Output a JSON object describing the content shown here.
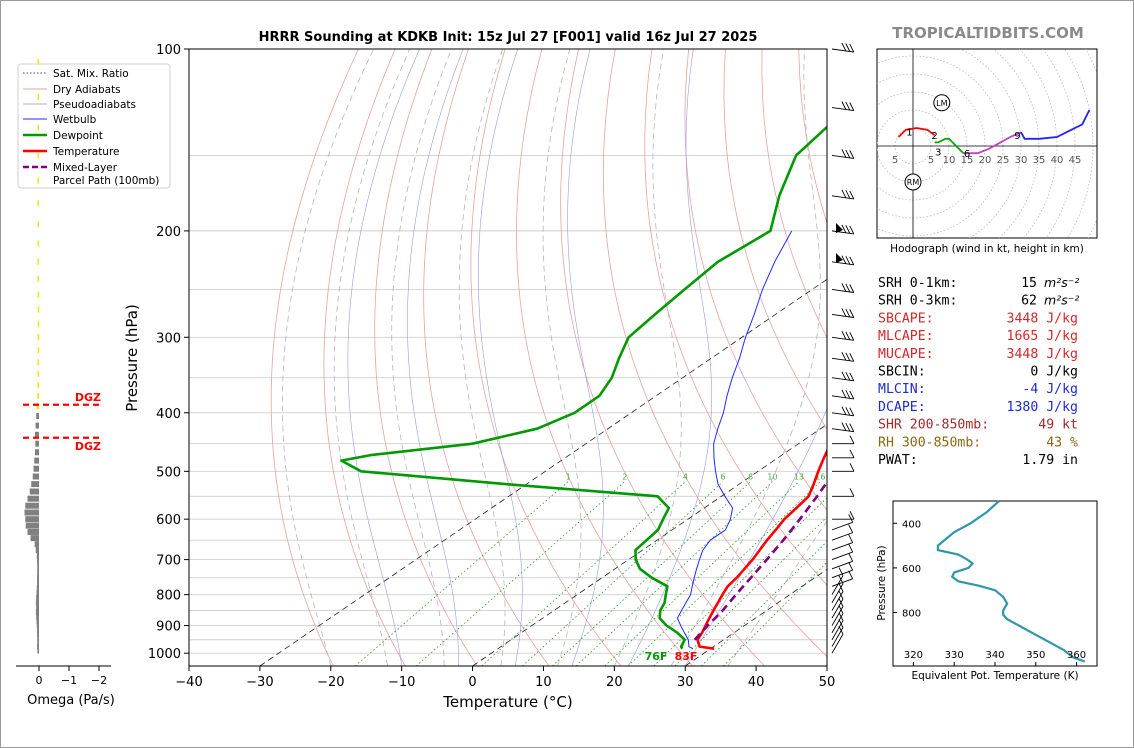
{
  "site": "TROPICALTIDBITS.COM",
  "chart_data": [
    {
      "type": "skew-t",
      "title": "HRRR Sounding at KDKB Init: 15z Jul 27 [F001] valid 16z Jul 27 2025",
      "xlabel": "Temperature (°C)",
      "ylabel": "Pressure (hPa)",
      "xlim": [
        -40,
        50
      ],
      "ylim": [
        1050,
        100
      ],
      "y_scale": "log",
      "skew_per_decade_C": 125,
      "xticks": [
        -40,
        -30,
        -20,
        -10,
        0,
        10,
        20,
        30,
        40,
        50
      ],
      "xtick_labels": [
        "−40",
        "−30",
        "−20",
        "−10",
        "0",
        "10",
        "20",
        "30",
        "40",
        "50"
      ],
      "yticks": [
        100,
        200,
        300,
        400,
        500,
        600,
        700,
        800,
        900,
        1000
      ],
      "mixing_ratio_labels": [
        "1",
        "2",
        "4",
        "6",
        "8",
        "10",
        "13",
        "16",
        "20",
        "24",
        "30",
        "36"
      ],
      "mixing_ratio_values": [
        1,
        2,
        4,
        6,
        8,
        10,
        13,
        16,
        20,
        24,
        30,
        36
      ],
      "surface_temp_label": "83F",
      "surface_dewpoint_label": "76F",
      "legend": {
        "placement": "top-left",
        "entries": [
          {
            "label": "Sat. Mix. Ratio",
            "color": "#4a4a4a",
            "style": "dotted"
          },
          {
            "label": "Dry Adiabats",
            "color": "#e8a0a0",
            "style": "solid"
          },
          {
            "label": "Pseudoadiabats",
            "color": "#b0b0b0",
            "style": "solid"
          },
          {
            "label": "Wetbulb",
            "color": "#1f2bff",
            "style": "solid"
          },
          {
            "label": "Dewpoint",
            "color": "#009900",
            "style": "solid"
          },
          {
            "label": "Temperature",
            "color": "#ff0000",
            "style": "solid"
          },
          {
            "label": "Mixed-Layer\nParcel Path (100mb)",
            "color": "#800080",
            "style": "dashed"
          }
        ]
      },
      "series": [
        {
          "name": "Temperature",
          "color": "#ff0000",
          "points": [
            [
              983,
              30.5
            ],
            [
              975,
              28
            ],
            [
              950,
              26.3
            ],
            [
              925,
              25.5
            ],
            [
              900,
              24.5
            ],
            [
              875,
              23.5
            ],
            [
              850,
              22.5
            ],
            [
              800,
              20.5
            ],
            [
              775,
              19.5
            ],
            [
              750,
              19
            ],
            [
              700,
              17.5
            ],
            [
              650,
              15.5
            ],
            [
              625,
              14.6
            ],
            [
              600,
              13.6
            ],
            [
              575,
              13
            ],
            [
              550,
              12.3
            ],
            [
              525,
              10.5
            ],
            [
              500,
              8.5
            ],
            [
              475,
              6.5
            ],
            [
              450,
              4.5
            ],
            [
              425,
              3
            ],
            [
              400,
              1
            ],
            [
              375,
              -1.5
            ],
            [
              350,
              -4
            ],
            [
              325,
              -7
            ],
            [
              300,
              -10
            ],
            [
              275,
              -13.5
            ],
            [
              250,
              -17
            ],
            [
              225,
              -21
            ],
            [
              200,
              -25.5
            ],
            [
              175,
              -30.5
            ],
            [
              150,
              -36
            ],
            [
              130,
              -41
            ],
            [
              110,
              -44
            ],
            [
              100,
              -45
            ]
          ]
        },
        {
          "name": "Dewpoint",
          "color": "#009900",
          "points": [
            [
              983,
              26
            ],
            [
              975,
              25.4
            ],
            [
              950,
              24.5
            ],
            [
              925,
              22
            ],
            [
              900,
              19
            ],
            [
              875,
              16.5
            ],
            [
              850,
              15
            ],
            [
              825,
              14
            ],
            [
              800,
              12.5
            ],
            [
              775,
              11
            ],
            [
              750,
              7
            ],
            [
              725,
              3.5
            ],
            [
              700,
              1
            ],
            [
              675,
              -1
            ],
            [
              650,
              -1.5
            ],
            [
              625,
              -2
            ],
            [
              600,
              -3.5
            ],
            [
              575,
              -5
            ],
            [
              550,
              -9
            ],
            [
              525,
              -33
            ],
            [
              500,
              -56
            ],
            [
              480,
              -61
            ],
            [
              470,
              -58
            ],
            [
              450,
              -46
            ],
            [
              425,
              -40
            ],
            [
              400,
              -38
            ],
            [
              375,
              -38
            ],
            [
              350,
              -40
            ],
            [
              325,
              -43
            ],
            [
              300,
              -46
            ],
            [
              275,
              -47
            ],
            [
              250,
              -48
            ],
            [
              225,
              -49
            ],
            [
              200,
              -48
            ],
            [
              175,
              -54
            ],
            [
              150,
              -60
            ],
            [
              130,
              -62
            ],
            [
              110,
              -65
            ],
            [
              100,
              -66
            ]
          ]
        },
        {
          "name": "Wetbulb",
          "color": "#1f2bff",
          "points": [
            [
              983,
              27.5
            ],
            [
              975,
              26.5
            ],
            [
              950,
              25
            ],
            [
              925,
              23
            ],
            [
              900,
              21
            ],
            [
              875,
              19
            ],
            [
              850,
              18
            ],
            [
              825,
              17
            ],
            [
              800,
              16
            ],
            [
              775,
              14.5
            ],
            [
              750,
              13
            ],
            [
              725,
              11.5
            ],
            [
              700,
              10
            ],
            [
              675,
              8.5
            ],
            [
              650,
              7.5
            ],
            [
              625,
              7.5
            ],
            [
              600,
              6
            ],
            [
              575,
              4
            ],
            [
              550,
              0.5
            ],
            [
              525,
              -3
            ],
            [
              500,
              -6
            ],
            [
              475,
              -9
            ],
            [
              450,
              -12
            ],
            [
              425,
              -14.5
            ],
            [
              400,
              -17
            ],
            [
              375,
              -20
            ],
            [
              350,
              -23
            ],
            [
              325,
              -26
            ],
            [
              300,
              -29.5
            ],
            [
              275,
              -33
            ],
            [
              250,
              -37
            ],
            [
              225,
              -41
            ],
            [
              200,
              -45
            ]
          ]
        },
        {
          "name": "Mixed-Layer Parcel Path (100mb)",
          "color": "#800080",
          "dash": true,
          "points": [
            [
              950,
              25.9
            ],
            [
              900,
              24.8
            ],
            [
              850,
              23.8
            ],
            [
              800,
              22.4
            ],
            [
              750,
              21
            ],
            [
              700,
              19.5
            ],
            [
              650,
              17.8
            ],
            [
              600,
              15.8
            ],
            [
              550,
              13.5
            ],
            [
              500,
              10.8
            ],
            [
              450,
              7.6
            ],
            [
              400,
              3.8
            ],
            [
              350,
              -0.9
            ],
            [
              300,
              -6.8
            ],
            [
              250,
              -14.8
            ],
            [
              200,
              -25.5
            ],
            [
              175,
              -32.6
            ],
            [
              150,
              -41
            ],
            [
              130,
              -49
            ],
            [
              110,
              -59
            ],
            [
              100,
              -65
            ]
          ]
        }
      ],
      "dgz_label": "DGZ",
      "dgz_pressures": [
        388,
        440
      ]
    },
    {
      "type": "bar",
      "orientation": "horizontal",
      "xlabel": "Omega (Pa/s)",
      "xticks": [
        0,
        -1,
        -2
      ],
      "xtick_labels": [
        "0",
        "−1",
        "−2"
      ],
      "pressures": [
        990,
        975,
        960,
        945,
        930,
        915,
        900,
        885,
        870,
        855,
        840,
        825,
        810,
        795,
        780,
        765,
        750,
        735,
        720,
        705,
        690,
        675,
        660,
        645,
        630,
        615,
        600,
        585,
        570,
        555,
        540,
        525,
        510,
        495,
        480,
        465,
        450,
        435,
        420,
        405,
        390,
        375,
        360,
        345,
        330,
        315,
        300,
        285,
        270,
        255,
        240,
        225,
        210,
        195,
        180,
        165,
        150,
        135,
        120,
        105
      ],
      "values": [
        0.04,
        0.06,
        0.05,
        0.05,
        0.06,
        0.06,
        0.08,
        0.1,
        0.12,
        0.14,
        0.12,
        0.14,
        0.12,
        0.1,
        0.08,
        0.06,
        0.06,
        0.05,
        0.05,
        0.06,
        0.08,
        0.15,
        0.22,
        0.5,
        0.7,
        0.82,
        0.85,
        0.9,
        0.85,
        0.7,
        0.55,
        0.45,
        0.35,
        0.3,
        0.25,
        0.2,
        0.18,
        0.2,
        0.16,
        0.12,
        0.1,
        0.05,
        0.03,
        0.03,
        0.03,
        0.02,
        0.02,
        0.02,
        0.02,
        0.02,
        0.03,
        0.03,
        0.03,
        0.03,
        0.03,
        0.03,
        0.03,
        0.03,
        0.03,
        0.03
      ],
      "highlight_color": "#ffe000",
      "highlight_levels": [
        390,
        375,
        360,
        345,
        330,
        315,
        300,
        285,
        270,
        255,
        240,
        225,
        210,
        195,
        180,
        165,
        150,
        135,
        120,
        105
      ],
      "bar_color": "#808080"
    },
    {
      "type": "hodograph",
      "xlabel": "Hodograph (wind in kt, height in km)",
      "ring_labels": [
        "5",
        "5",
        "10",
        "15",
        "20",
        "25",
        "30",
        "35",
        "40",
        "45"
      ],
      "ring_label_values": [
        -5,
        5,
        10,
        15,
        20,
        25,
        30,
        35,
        40,
        45
      ],
      "height_labels": [
        {
          "text": "1",
          "u": -1,
          "v": 4
        },
        {
          "text": "2",
          "u": 6,
          "v": 3
        },
        {
          "text": "3",
          "u": 7,
          "v": -1.5
        },
        {
          "text": "6",
          "u": 15,
          "v": -2
        },
        {
          "text": "9",
          "u": 29,
          "v": 3
        }
      ],
      "markers": [
        {
          "text": "LM",
          "u": 8,
          "v": 12
        },
        {
          "text": "RM",
          "u": 0,
          "v": -10
        }
      ],
      "segments": [
        {
          "color": "#ff0000",
          "points": [
            [
              -4,
              2.5
            ],
            [
              -2,
              4.5
            ],
            [
              1,
              5
            ],
            [
              4,
              4.5
            ],
            [
              6,
              3
            ]
          ]
        },
        {
          "color": "#00aa00",
          "points": [
            [
              6,
              1
            ],
            [
              7,
              1
            ],
            [
              9,
              2
            ],
            [
              10,
              2
            ],
            [
              12,
              0
            ],
            [
              13,
              -1
            ],
            [
              14,
              -2
            ]
          ]
        },
        {
          "color": "#c040c0",
          "points": [
            [
              14,
              -2
            ],
            [
              18,
              -2
            ],
            [
              21,
              -0.8
            ],
            [
              24,
              0.8
            ],
            [
              27,
              2.5
            ],
            [
              30,
              3.8
            ]
          ]
        },
        {
          "color": "#2222ff",
          "points": [
            [
              30,
              3.8
            ],
            [
              31,
              2
            ],
            [
              35,
              2
            ],
            [
              40,
              2.5
            ],
            [
              43,
              4
            ],
            [
              47,
              6
            ],
            [
              49,
              10
            ]
          ]
        }
      ]
    },
    {
      "type": "line",
      "xlabel": "Equivalent Pot. Temperature (K)",
      "ylabel": "Pressure (hPa)",
      "xlim": [
        315,
        365
      ],
      "ylim": [
        1040,
        300
      ],
      "xticks": [
        320,
        330,
        340,
        350,
        360
      ],
      "yticks": [
        400,
        600,
        800
      ],
      "color": "#2e98a8",
      "points": [
        [
          300,
          341
        ],
        [
          350,
          338
        ],
        [
          400,
          334
        ],
        [
          440,
          330
        ],
        [
          470,
          328
        ],
        [
          500,
          326
        ],
        [
          520,
          326
        ],
        [
          540,
          331
        ],
        [
          560,
          333
        ],
        [
          580,
          334.5
        ],
        [
          600,
          333.5
        ],
        [
          620,
          330
        ],
        [
          640,
          329.5
        ],
        [
          660,
          331
        ],
        [
          680,
          336
        ],
        [
          700,
          340
        ],
        [
          730,
          342
        ],
        [
          760,
          343
        ],
        [
          790,
          342
        ],
        [
          810,
          342
        ],
        [
          830,
          343
        ],
        [
          860,
          346
        ],
        [
          900,
          350
        ],
        [
          940,
          354
        ],
        [
          970,
          357
        ],
        [
          985,
          358
        ],
        [
          1000,
          359
        ],
        [
          1020,
          362
        ]
      ]
    }
  ],
  "indices": {
    "rows": [
      {
        "name": "SRH 0-1km:",
        "value": "15",
        "unit": "m²s⁻²",
        "color": "#000000"
      },
      {
        "name": "SRH 0-3km:",
        "value": "62",
        "unit": "m²s⁻²",
        "color": "#000000"
      },
      {
        "name": "SBCAPE:",
        "value": "3448 J/kg",
        "unit": "",
        "color": "#d62728"
      },
      {
        "name": "MLCAPE:",
        "value": "1665 J/kg",
        "unit": "",
        "color": "#d62728"
      },
      {
        "name": "MUCAPE:",
        "value": "3448 J/kg",
        "unit": "",
        "color": "#d62728"
      },
      {
        "name": "SBCIN:",
        "value": "0 J/kg",
        "unit": "",
        "color": "#000000"
      },
      {
        "name": "MLCIN:",
        "value": "-4 J/kg",
        "unit": "",
        "color": "#1f2bcc"
      },
      {
        "name": "DCAPE:",
        "value": "1380 J/kg",
        "unit": "",
        "color": "#1f2bcc"
      },
      {
        "name": "SHR 200-850mb:",
        "value": "49 kt",
        "unit": "",
        "color": "#a52a2a"
      },
      {
        "name": "RH 300-850mb:",
        "value": "43 %",
        "unit": "",
        "color": "#8b6914"
      },
      {
        "name": "PWAT:",
        "value": "1.79 in",
        "unit": "",
        "color": "#000000"
      }
    ]
  }
}
